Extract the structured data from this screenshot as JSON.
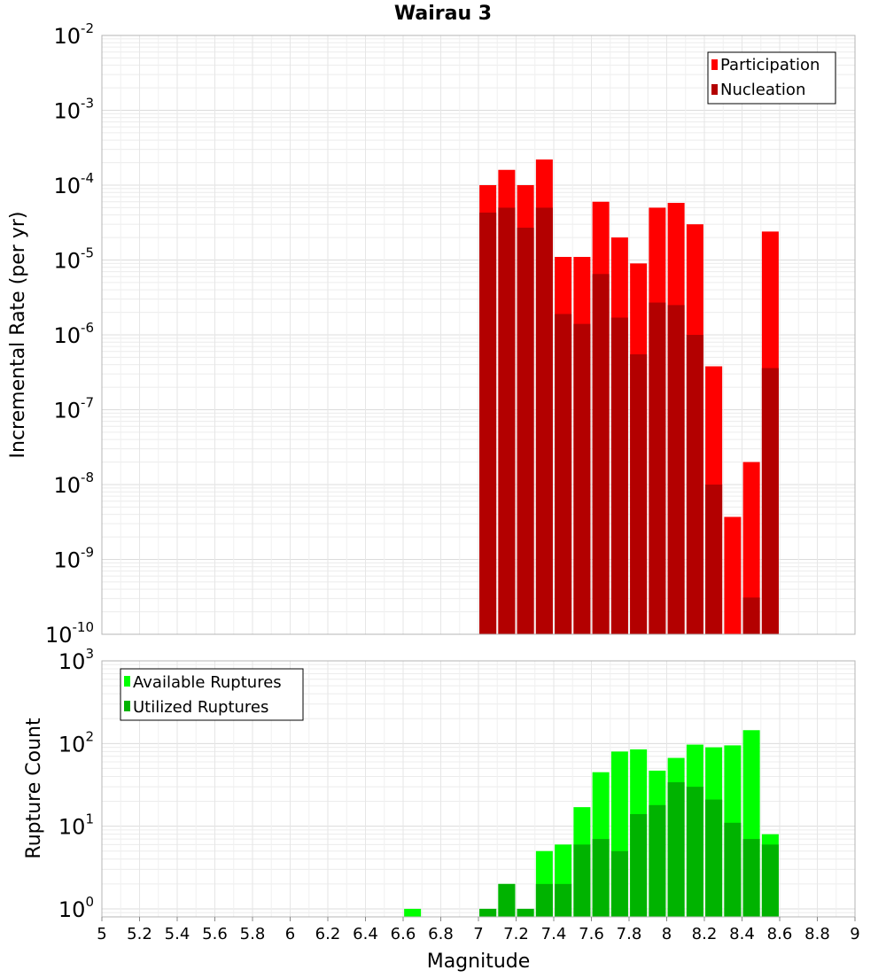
{
  "chart_data": [
    {
      "type": "bar",
      "title": "Wairau 3",
      "xlabel": "Magnitude",
      "ylabel": "Incremental Rate (per yr)",
      "yscale": "log",
      "ylim": [
        1e-10,
        0.01
      ],
      "xlim": [
        5,
        9
      ],
      "grid": true,
      "legend_position": "top-right",
      "y_tick_labels": [
        {
          "base": "10",
          "exp": "-10"
        },
        {
          "base": "10",
          "exp": "-9"
        },
        {
          "base": "10",
          "exp": "-8"
        },
        {
          "base": "10",
          "exp": "-7"
        },
        {
          "base": "10",
          "exp": "-6"
        },
        {
          "base": "10",
          "exp": "-5"
        },
        {
          "base": "10",
          "exp": "-4"
        },
        {
          "base": "10",
          "exp": "-3"
        },
        {
          "base": "10",
          "exp": "-2"
        }
      ],
      "x": [
        7.05,
        7.15,
        7.25,
        7.35,
        7.45,
        7.55,
        7.65,
        7.75,
        7.85,
        7.95,
        8.05,
        8.15,
        8.25,
        8.35,
        8.45,
        8.55
      ],
      "series": [
        {
          "name": "Participation",
          "color": "#ff0000",
          "values": [
            0.0001,
            0.00016,
            0.0001,
            0.00022,
            1.1e-05,
            1.1e-05,
            6e-05,
            2e-05,
            9e-06,
            5e-05,
            5.8e-05,
            3e-05,
            3.8e-07,
            3.7e-09,
            2e-08,
            2.4e-05
          ]
        },
        {
          "name": "Nucleation",
          "color": "#b30000",
          "values": [
            4.3e-05,
            5e-05,
            2.7e-05,
            5e-05,
            1.9e-06,
            1.4e-06,
            6.5e-06,
            1.7e-06,
            5.5e-07,
            2.7e-06,
            2.5e-06,
            1e-06,
            1e-08,
            1e-10,
            3.1e-10,
            3.6e-07
          ]
        }
      ]
    },
    {
      "type": "bar",
      "title": "",
      "xlabel": "Magnitude",
      "ylabel": "Rupture Count",
      "yscale": "log",
      "ylim": [
        0.8,
        1000
      ],
      "xlim": [
        5,
        9
      ],
      "grid": true,
      "legend_position": "top-left",
      "y_tick_labels": [
        {
          "base": "10",
          "exp": "0"
        },
        {
          "base": "10",
          "exp": "1"
        },
        {
          "base": "10",
          "exp": "2"
        },
        {
          "base": "10",
          "exp": "3"
        }
      ],
      "x_tick_labels": [
        "5",
        "5.2",
        "5.4",
        "5.6",
        "5.8",
        "6",
        "6.2",
        "6.4",
        "6.6",
        "6.8",
        "7",
        "7.2",
        "7.4",
        "7.6",
        "7.8",
        "8",
        "8.2",
        "8.4",
        "8.6",
        "8.8",
        "9"
      ],
      "x": [
        6.65,
        7.05,
        7.15,
        7.25,
        7.35,
        7.45,
        7.55,
        7.65,
        7.75,
        7.85,
        7.95,
        8.05,
        8.15,
        8.25,
        8.35,
        8.45,
        8.55
      ],
      "series": [
        {
          "name": "Available Ruptures",
          "color": "#00ff00",
          "values": [
            1,
            1,
            2,
            1,
            5,
            6,
            17,
            45,
            80,
            85,
            47,
            67,
            97,
            90,
            95,
            145,
            8
          ]
        },
        {
          "name": "Utilized Ruptures",
          "color": "#00b300",
          "values": [
            0,
            1,
            2,
            1,
            2,
            2,
            6,
            7,
            5,
            14,
            18,
            34,
            30,
            21,
            11,
            7,
            6
          ]
        }
      ]
    }
  ]
}
